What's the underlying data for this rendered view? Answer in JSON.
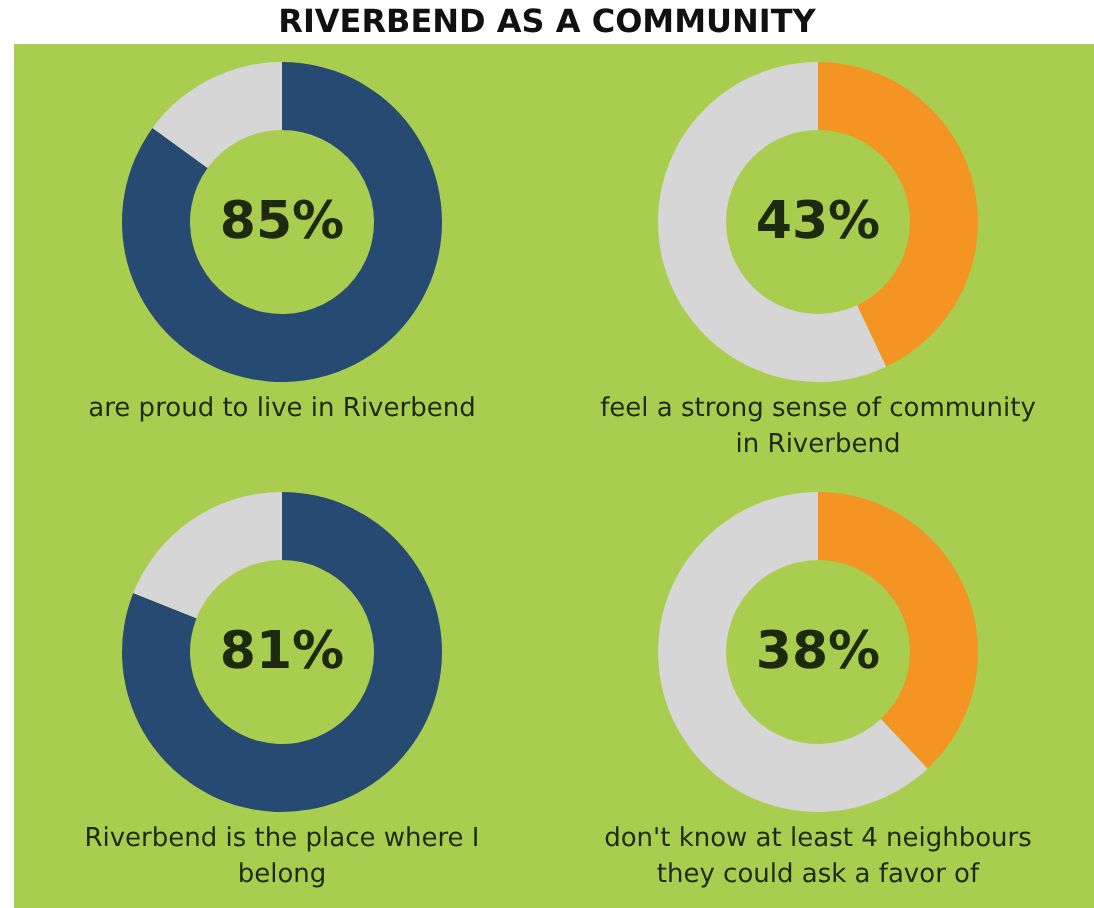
{
  "chart_data": [
    {
      "type": "donut",
      "title": "RIVERBEND AS A COMMUNITY",
      "categories": [
        null,
        null
      ],
      "values": [
        85,
        15
      ],
      "colors": [
        "#274a72",
        "#d6d6d6"
      ],
      "annotations": [
        "85%",
        "are proud to live in Riverbend"
      ]
    },
    {
      "type": "donut",
      "categories": [
        null,
        null
      ],
      "values": [
        43,
        57
      ],
      "colors": [
        "#f39423",
        "#d6d6d6"
      ],
      "annotations": [
        "43%",
        "feel a strong sense of community in Riverbend"
      ]
    },
    {
      "type": "donut",
      "categories": [
        null,
        null
      ],
      "values": [
        81,
        19
      ],
      "colors": [
        "#274a72",
        "#d6d6d6"
      ],
      "annotations": [
        "81%",
        "Riverbend is the place where I belong"
      ]
    },
    {
      "type": "donut",
      "categories": [
        null,
        null
      ],
      "values": [
        38,
        62
      ],
      "colors": [
        "#f39423",
        "#d6d6d6"
      ],
      "annotations": [
        "38%",
        "don't know at least 4 neighbours they could ask a favor of"
      ]
    }
  ]
}
